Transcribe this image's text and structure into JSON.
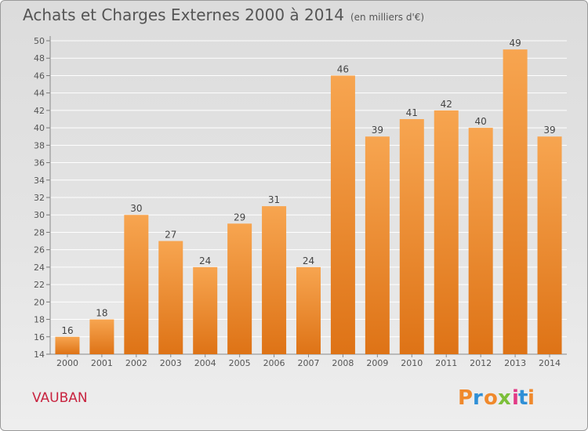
{
  "chart_data": {
    "type": "bar",
    "title": "Achats et Charges Externes 2000 à 2014",
    "unit_label": "(en milliers d'€)",
    "categories": [
      "2000",
      "2001",
      "2002",
      "2003",
      "2004",
      "2005",
      "2006",
      "2007",
      "2008",
      "2009",
      "2010",
      "2011",
      "2012",
      "2013",
      "2014"
    ],
    "values": [
      16,
      18,
      30,
      27,
      24,
      29,
      31,
      24,
      46,
      39,
      41,
      42,
      40,
      49,
      39
    ],
    "ylim": [
      14,
      50
    ],
    "yticks": [
      14,
      16,
      18,
      20,
      22,
      24,
      26,
      28,
      30,
      32,
      34,
      36,
      38,
      40,
      42,
      44,
      46,
      48,
      50
    ],
    "grid": true,
    "bar_color_top": "#f7a550",
    "bar_color_bottom": "#de7316"
  },
  "footer": {
    "commune": "VAUBAN",
    "commune_color": "#c8233f",
    "logo": {
      "text": "Proxiti",
      "letters": [
        "P",
        "r",
        "o",
        "x",
        "i",
        "t",
        "i"
      ],
      "colors": [
        "#f0892c",
        "#2f8fd6",
        "#f0892c",
        "#7cbf3a",
        "#e23a86",
        "#2f8fd6",
        "#f0892c"
      ]
    }
  }
}
